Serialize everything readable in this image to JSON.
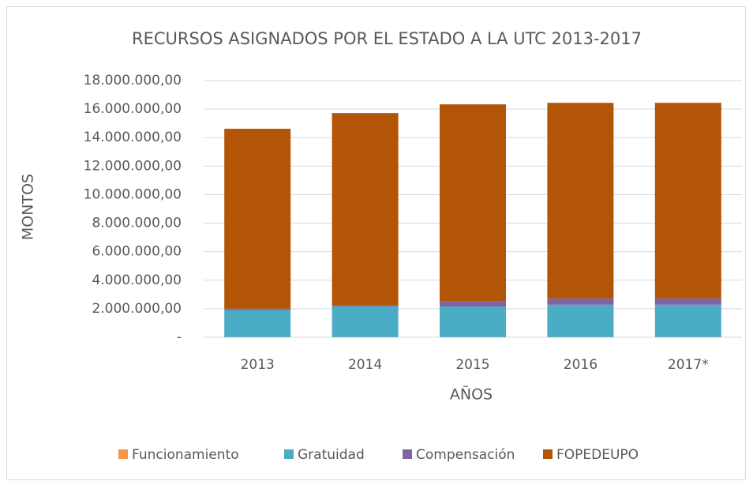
{
  "chart_data": {
    "type": "stacked_bar",
    "title": "RECURSOS ASIGNADOS POR EL ESTADO A LA UTC 2013-2017",
    "x_label": "AÑOS",
    "y_label": "MONTOS",
    "categories": [
      "2013",
      "2014",
      "2015",
      "2016",
      "2017*"
    ],
    "series": [
      {
        "name": "Funcionamiento",
        "color": "#f79646",
        "values": [
          10000,
          10000,
          10000,
          10000,
          10000
        ]
      },
      {
        "name": "Gratuidad",
        "color": "#4bacc6",
        "values": [
          1900000,
          2150000,
          2150000,
          2270000,
          2270000
        ]
      },
      {
        "name": "Compensación",
        "color": "#8064a2",
        "values": [
          100000,
          100000,
          350000,
          440000,
          440000
        ]
      },
      {
        "name": "FOPEDEUPO",
        "color": "#b35506",
        "values": [
          12610000,
          13460000,
          13820000,
          13720000,
          13720000
        ]
      }
    ],
    "ylim": [
      0,
      18000000
    ],
    "yticks": [
      {
        "value": 0,
        "label": "-"
      },
      {
        "value": 2000000,
        "label": "2.000.000,00"
      },
      {
        "value": 4000000,
        "label": "4.000.000,00"
      },
      {
        "value": 6000000,
        "label": "6.000.000,00"
      },
      {
        "value": 8000000,
        "label": "8.000.000,00"
      },
      {
        "value": 10000000,
        "label": "10.000.000,00"
      },
      {
        "value": 12000000,
        "label": "12.000.000,00"
      },
      {
        "value": 14000000,
        "label": "14.000.000,00"
      },
      {
        "value": 16000000,
        "label": "16.000.000,00"
      },
      {
        "value": 18000000,
        "label": "18.000.000,00"
      }
    ],
    "grid": true,
    "legend": "bottom"
  }
}
